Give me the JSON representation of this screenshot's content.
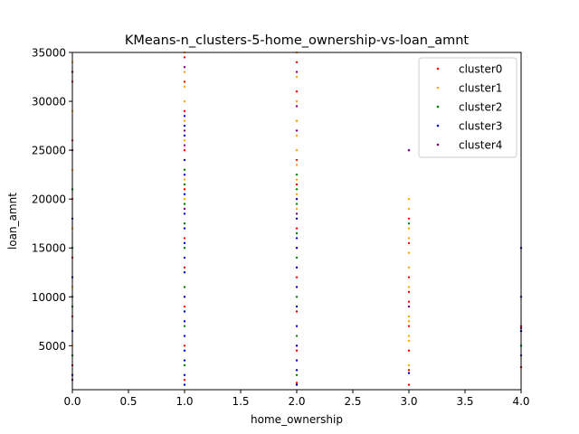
{
  "chart_data": {
    "type": "scatter",
    "title": "KMeans-n_clusters-5-home_ownership-vs-loan_amnt",
    "xlabel": "home_ownership",
    "ylabel": "loan_amnt",
    "xlim": [
      0.0,
      4.0
    ],
    "ylim": [
      500,
      35000
    ],
    "x_ticks": [
      0.0,
      0.5,
      1.0,
      1.5,
      2.0,
      2.5,
      3.0,
      3.5,
      4.0
    ],
    "x_tick_labels": [
      "0.0",
      "0.5",
      "1.0",
      "1.5",
      "2.0",
      "2.5",
      "3.0",
      "3.5",
      "4.0"
    ],
    "y_ticks": [
      5000,
      10000,
      15000,
      20000,
      25000,
      30000,
      35000
    ],
    "y_tick_labels": [
      "5000",
      "10000",
      "15000",
      "20000",
      "25000",
      "30000",
      "35000"
    ],
    "grid": false,
    "legend_position": "top-right",
    "series": [
      {
        "name": "cluster0",
        "color": "#ff0000",
        "points": [
          [
            0,
            3000
          ],
          [
            0,
            8000
          ],
          [
            0,
            14000
          ],
          [
            0,
            20000
          ],
          [
            0,
            26000
          ],
          [
            0,
            32000
          ],
          [
            1,
            1500
          ],
          [
            1,
            5000
          ],
          [
            1,
            9000
          ],
          [
            1,
            13000
          ],
          [
            1,
            16000
          ],
          [
            1,
            21000
          ],
          [
            1,
            25000
          ],
          [
            1,
            29000
          ],
          [
            1,
            32000
          ],
          [
            1,
            34500
          ],
          [
            2,
            1200
          ],
          [
            2,
            4500
          ],
          [
            2,
            8500
          ],
          [
            2,
            12000
          ],
          [
            2,
            17000
          ],
          [
            2,
            21500
          ],
          [
            2,
            24000
          ],
          [
            2,
            28000
          ],
          [
            2,
            31000
          ],
          [
            2,
            34000
          ],
          [
            3,
            1000
          ],
          [
            3,
            2500
          ],
          [
            3,
            4500
          ],
          [
            3,
            7000
          ],
          [
            3,
            9500
          ],
          [
            3,
            10500
          ],
          [
            3,
            12000
          ],
          [
            3,
            15500
          ],
          [
            3,
            18000
          ],
          [
            4,
            2800
          ],
          [
            4,
            7000
          ]
        ]
      },
      {
        "name": "cluster1",
        "color": "#ffa500",
        "points": [
          [
            0,
            5000
          ],
          [
            0,
            11000
          ],
          [
            0,
            17000
          ],
          [
            0,
            23000
          ],
          [
            0,
            29000
          ],
          [
            0,
            34000
          ],
          [
            1,
            20000
          ],
          [
            1,
            22000
          ],
          [
            1,
            24000
          ],
          [
            1,
            26000
          ],
          [
            1,
            28000
          ],
          [
            1,
            30000
          ],
          [
            1,
            31500
          ],
          [
            1,
            33000
          ],
          [
            1,
            35000
          ],
          [
            2,
            19000
          ],
          [
            2,
            20500
          ],
          [
            2,
            22000
          ],
          [
            2,
            23500
          ],
          [
            2,
            25000
          ],
          [
            2,
            26500
          ],
          [
            2,
            28000
          ],
          [
            2,
            30000
          ],
          [
            2,
            32500
          ],
          [
            2,
            35000
          ],
          [
            3,
            3000
          ],
          [
            3,
            5500
          ],
          [
            3,
            6000
          ],
          [
            3,
            7500
          ],
          [
            3,
            8000
          ],
          [
            3,
            11000
          ],
          [
            3,
            13000
          ],
          [
            3,
            14500
          ],
          [
            3,
            16000
          ],
          [
            3,
            17000
          ],
          [
            3,
            19000
          ],
          [
            3,
            20000
          ]
        ]
      },
      {
        "name": "cluster2",
        "color": "#008000",
        "points": [
          [
            0,
            4000
          ],
          [
            0,
            9000
          ],
          [
            0,
            15000
          ],
          [
            0,
            21000
          ],
          [
            1,
            3000
          ],
          [
            1,
            7000
          ],
          [
            1,
            11000
          ],
          [
            1,
            15000
          ],
          [
            1,
            17500
          ],
          [
            1,
            19500
          ],
          [
            1,
            21500
          ],
          [
            1,
            23000
          ],
          [
            2,
            2000
          ],
          [
            2,
            6000
          ],
          [
            2,
            10000
          ],
          [
            2,
            14000
          ],
          [
            2,
            16500
          ],
          [
            2,
            19500
          ],
          [
            2,
            21000
          ],
          [
            2,
            22500
          ],
          [
            3,
            17500
          ],
          [
            4,
            5000
          ]
        ]
      },
      {
        "name": "cluster3",
        "color": "#0000cd",
        "points": [
          [
            0,
            2000
          ],
          [
            0,
            6500
          ],
          [
            0,
            12000
          ],
          [
            0,
            18000
          ],
          [
            1,
            1000
          ],
          [
            1,
            2000
          ],
          [
            1,
            3500
          ],
          [
            1,
            4500
          ],
          [
            1,
            6000
          ],
          [
            1,
            7500
          ],
          [
            1,
            8500
          ],
          [
            1,
            10000
          ],
          [
            1,
            12500
          ],
          [
            1,
            14000
          ],
          [
            1,
            15500
          ],
          [
            1,
            17000
          ],
          [
            1,
            18500
          ],
          [
            1,
            20500
          ],
          [
            1,
            22500
          ],
          [
            1,
            24000
          ],
          [
            1,
            26500
          ],
          [
            1,
            27500
          ],
          [
            1,
            28500
          ],
          [
            2,
            1000
          ],
          [
            2,
            2500
          ],
          [
            2,
            3500
          ],
          [
            2,
            5000
          ],
          [
            2,
            7000
          ],
          [
            2,
            9000
          ],
          [
            2,
            11000
          ],
          [
            2,
            13000
          ],
          [
            2,
            15000
          ],
          [
            2,
            16000
          ],
          [
            2,
            18000
          ],
          [
            2,
            20000
          ],
          [
            3,
            25000
          ],
          [
            3,
            2200
          ],
          [
            4,
            15000
          ],
          [
            4,
            10000
          ],
          [
            4,
            6500
          ],
          [
            4,
            4000
          ]
        ]
      },
      {
        "name": "cluster4",
        "color": "#800080",
        "points": [
          [
            0,
            1500
          ],
          [
            0,
            10000
          ],
          [
            0,
            25000
          ],
          [
            0,
            33000
          ],
          [
            1,
            19000
          ],
          [
            1,
            25500
          ],
          [
            1,
            27000
          ],
          [
            1,
            33500
          ],
          [
            2,
            18500
          ],
          [
            2,
            27000
          ],
          [
            2,
            29500
          ],
          [
            2,
            33000
          ],
          [
            3,
            25000
          ],
          [
            3,
            9000
          ],
          [
            4,
            6800
          ]
        ]
      }
    ]
  }
}
